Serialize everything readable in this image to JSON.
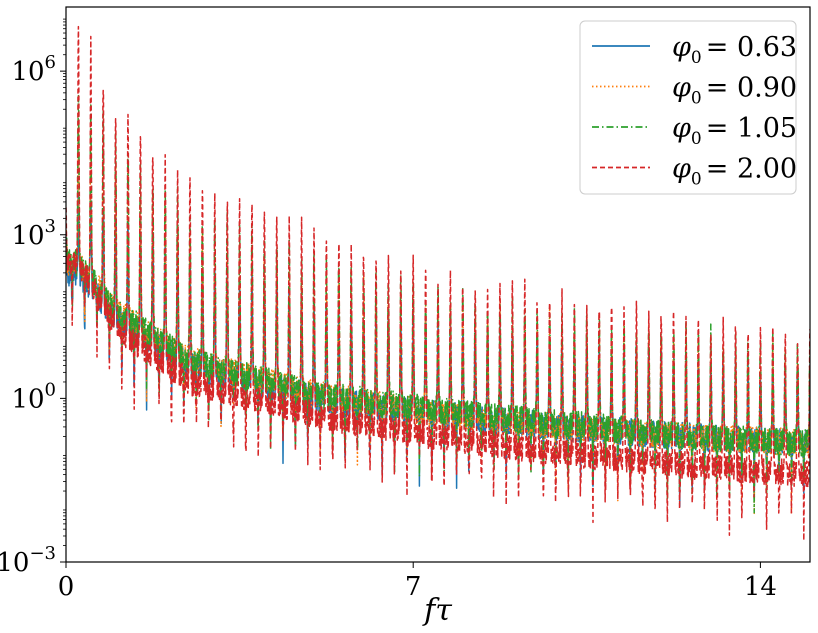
{
  "chart_data": {
    "type": "line",
    "title": "",
    "xlabel": "fτ",
    "ylabel": "",
    "xlim": [
      0,
      15
    ],
    "ylim": [
      0.001,
      15000000
    ],
    "yscale": "log",
    "x_ticks": [
      {
        "value": 0,
        "label": "0"
      },
      {
        "value": 7,
        "label": "7"
      },
      {
        "value": 14,
        "label": "14"
      }
    ],
    "y_ticks": [
      {
        "value": 0.001,
        "base": "10",
        "exp": "−3"
      },
      {
        "value": 1,
        "base": "10",
        "exp": "0"
      },
      {
        "value": 1000,
        "base": "10",
        "exp": "3"
      },
      {
        "value": 1000000,
        "base": "10",
        "exp": "6"
      }
    ],
    "grid": false,
    "legend_position": "top-right",
    "peak_spacing": 0.25,
    "series": [
      {
        "name": "φ0 = 0.63",
        "legend_symbol": "φ",
        "legend_sub": "0",
        "legend_value": "= 0.63",
        "color": "#1f77b4",
        "style": "solid",
        "envelope_peaks": [
          [
            0.0,
            500
          ],
          [
            0.25,
            5000
          ],
          [
            1.0,
            2000
          ],
          [
            2.5,
            300
          ],
          [
            5.0,
            60
          ],
          [
            7.5,
            20
          ],
          [
            10.0,
            10
          ],
          [
            12.5,
            5
          ],
          [
            15.0,
            3
          ]
        ],
        "envelope_floor": [
          [
            0.0,
            200
          ],
          [
            0.25,
            200
          ],
          [
            1.0,
            30
          ],
          [
            2.5,
            4
          ],
          [
            5.0,
            1
          ],
          [
            7.5,
            0.5
          ],
          [
            10.0,
            0.3
          ],
          [
            12.5,
            0.2
          ],
          [
            15.0,
            0.15
          ]
        ]
      },
      {
        "name": "φ0 = 0.90",
        "legend_symbol": "φ",
        "legend_sub": "0",
        "legend_value": "= 0.90",
        "color": "#ff7f0e",
        "style": "dotted",
        "envelope_peaks": [
          [
            0.0,
            800
          ],
          [
            0.25,
            100000
          ],
          [
            1.0,
            20000
          ],
          [
            2.5,
            1000
          ],
          [
            5.0,
            200
          ],
          [
            7.5,
            60
          ],
          [
            10.0,
            25
          ],
          [
            12.5,
            12
          ],
          [
            15.0,
            6
          ]
        ],
        "envelope_floor": [
          [
            0.0,
            300
          ],
          [
            0.25,
            300
          ],
          [
            1.0,
            40
          ],
          [
            2.5,
            5
          ],
          [
            5.0,
            1.2
          ],
          [
            7.5,
            0.5
          ],
          [
            10.0,
            0.3
          ],
          [
            12.5,
            0.2
          ],
          [
            15.0,
            0.15
          ]
        ]
      },
      {
        "name": "φ0 = 1.05",
        "legend_symbol": "φ",
        "legend_sub": "0",
        "legend_value": "= 1.05",
        "color": "#2ca02c",
        "style": "dashdot",
        "envelope_peaks": [
          [
            0.0,
            1000
          ],
          [
            0.25,
            500000
          ],
          [
            1.0,
            50000
          ],
          [
            2.5,
            3000
          ],
          [
            5.0,
            300
          ],
          [
            7.5,
            80
          ],
          [
            10.0,
            30
          ],
          [
            12.5,
            15
          ],
          [
            15.0,
            8
          ]
        ],
        "envelope_floor": [
          [
            0.0,
            300
          ],
          [
            0.25,
            300
          ],
          [
            1.0,
            40
          ],
          [
            2.5,
            5
          ],
          [
            5.0,
            1.2
          ],
          [
            7.5,
            0.6
          ],
          [
            10.0,
            0.35
          ],
          [
            12.5,
            0.2
          ],
          [
            15.0,
            0.15
          ]
        ]
      },
      {
        "name": "φ0 = 2.00",
        "legend_symbol": "φ",
        "legend_sub": "0",
        "legend_value": "= 2.00",
        "color": "#d62728",
        "style": "dashed",
        "envelope_peaks": [
          [
            0.0,
            2000
          ],
          [
            0.25,
            10000000
          ],
          [
            1.0,
            200000
          ],
          [
            2.5,
            10000
          ],
          [
            5.0,
            1000
          ],
          [
            7.5,
            200
          ],
          [
            10.0,
            60
          ],
          [
            12.5,
            30
          ],
          [
            15.0,
            15
          ]
        ],
        "envelope_floor": [
          [
            0.0,
            300
          ],
          [
            0.25,
            300
          ],
          [
            1.0,
            20
          ],
          [
            2.5,
            2
          ],
          [
            5.0,
            0.5
          ],
          [
            7.5,
            0.2
          ],
          [
            10.0,
            0.1
          ],
          [
            12.5,
            0.06
          ],
          [
            15.0,
            0.04
          ]
        ]
      }
    ]
  }
}
